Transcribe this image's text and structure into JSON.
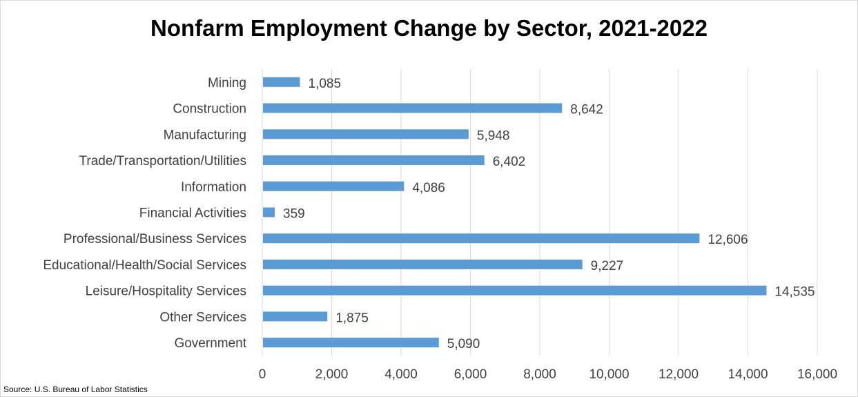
{
  "chart_data": {
    "type": "bar",
    "orientation": "horizontal",
    "title": "Nonfarm Employment Change by Sector, 2021-2022",
    "source": "Source: U.S. Bureau of Labor Statistics",
    "categories": [
      "Mining",
      "Construction",
      "Manufacturing",
      "Trade/Transportation/Utilities",
      "Information",
      "Financial Activities",
      "Professional/Business Services",
      "Educational/Health/Social Services",
      "Leisure/Hospitality Services",
      "Other Services",
      "Government"
    ],
    "values": [
      1085,
      8642,
      5948,
      6402,
      4086,
      359,
      12606,
      9227,
      14535,
      1875,
      5090
    ],
    "value_labels": [
      "1,085",
      "8,642",
      "5,948",
      "6,402",
      "4,086",
      "359",
      "12,606",
      "9,227",
      "14,535",
      "1,875",
      "5,090"
    ],
    "xlim": [
      0,
      16000
    ],
    "xticks": [
      0,
      2000,
      4000,
      6000,
      8000,
      10000,
      12000,
      14000,
      16000
    ],
    "xtick_labels": [
      "0",
      "2,000",
      "4,000",
      "6,000",
      "8,000",
      "10,000",
      "12,000",
      "14,000",
      "16,000"
    ],
    "grid": "vertical",
    "bar_color": "#5b9bd5",
    "grid_color": "#d9d9d9",
    "legend": "none"
  }
}
